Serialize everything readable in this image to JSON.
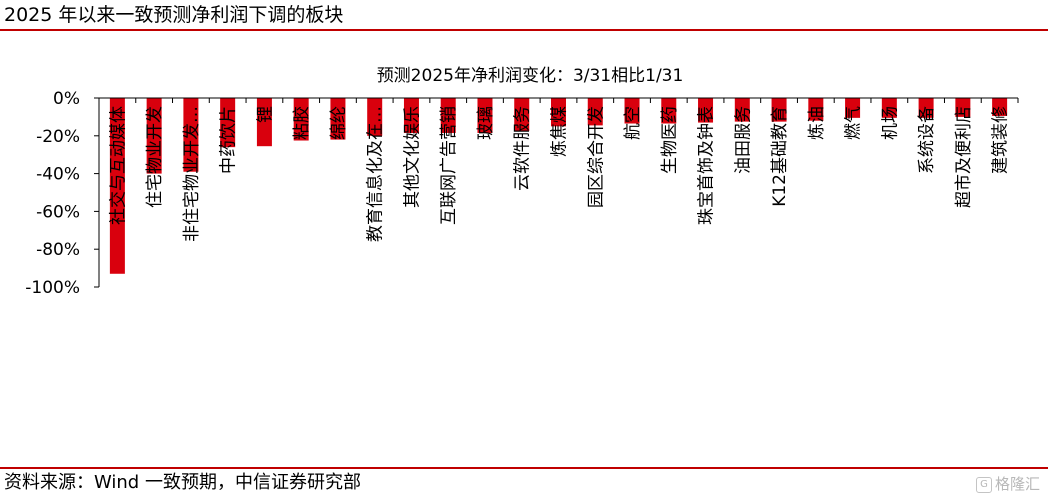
{
  "header": {
    "title": "2025 年以来一致预测净利润下调的板块"
  },
  "source_note": "资料来源：Wind 一致预期，中信证券研究部",
  "watermark": {
    "text": "格隆汇"
  },
  "colors": {
    "bar": "#d9000d",
    "rule": "#c00000",
    "axis": "#000000"
  },
  "chart_data": {
    "type": "bar",
    "title": "预测2025年净利润变化：3/31相比1/31",
    "xlabel": "",
    "ylabel": "",
    "ylim": [
      -100,
      0
    ],
    "yticks": [
      "0%",
      "-20%",
      "-40%",
      "-60%",
      "-80%",
      "-100%"
    ],
    "ytick_values": [
      0,
      -20,
      -40,
      -60,
      -80,
      -100
    ],
    "grid": false,
    "categories": [
      "社交与互动媒体",
      "住宅物业开发",
      "非住宅物业开发…",
      "中药饮片",
      "锂",
      "粘胶",
      "绵纶",
      "教育信息化及在…",
      "其他文化娱乐",
      "互联网广告营销",
      "玻璃",
      "云软件服务",
      "炼焦煤",
      "园区综合开发",
      "航空",
      "生物医药",
      "珠宝首饰及钟表",
      "油田服务",
      "K12基础教育",
      "炼油",
      "燃气",
      "机场",
      "系统设备",
      "超市及便利店",
      "建筑装修"
    ],
    "values": [
      -93,
      -40,
      -39,
      -26,
      -25.5,
      -22.5,
      -22,
      -20,
      -18.5,
      -18.5,
      -18.5,
      -17.5,
      -15,
      -14.5,
      -13.5,
      -13.5,
      -13,
      -12.5,
      -12.5,
      -12,
      -10.5,
      -10.5,
      -10.5,
      -10,
      -9.5
    ]
  }
}
